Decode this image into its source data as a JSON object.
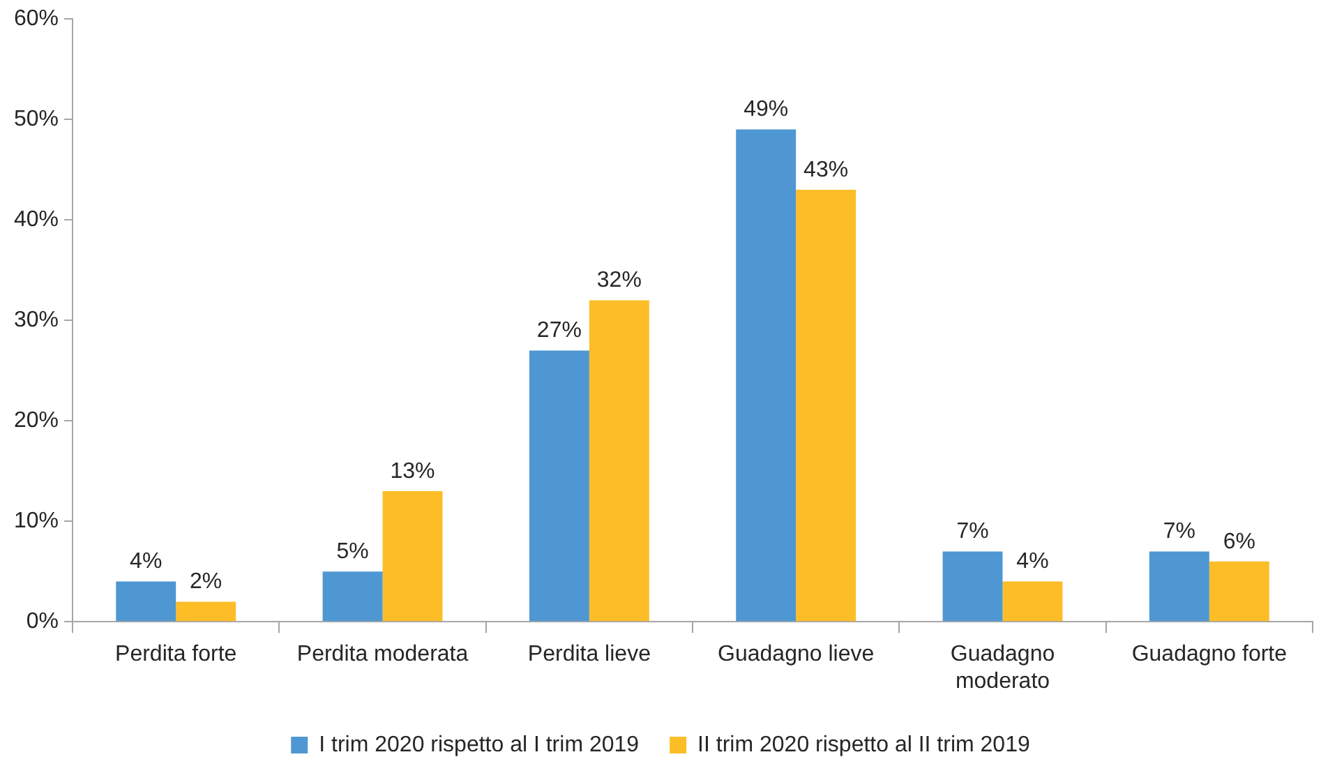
{
  "chart_data": {
    "type": "bar",
    "categories": [
      "Perdita forte",
      "Perdita moderata",
      "Perdita lieve",
      "Guadagno lieve",
      "Guadagno moderato",
      "Guadagno forte"
    ],
    "series": [
      {
        "name": "I trim 2020 rispetto al I trim 2019",
        "color": "#4e97d2",
        "values": [
          4,
          5,
          27,
          49,
          7,
          7
        ],
        "value_labels": [
          "4%",
          "5%",
          "27%",
          "49%",
          "7%",
          "7%"
        ]
      },
      {
        "name": "II trim 2020 rispetto al II trim 2019",
        "color": "#fcbd27",
        "values": [
          2,
          13,
          32,
          43,
          4,
          6
        ],
        "value_labels": [
          "2%",
          "13%",
          "32%",
          "43%",
          "4%",
          "6%"
        ]
      }
    ],
    "ylim": [
      0,
      60
    ],
    "yticks": [
      {
        "value": 0,
        "label": "0%"
      },
      {
        "value": 10,
        "label": "10%"
      },
      {
        "value": 20,
        "label": "20%"
      },
      {
        "value": 30,
        "label": "30%"
      },
      {
        "value": 40,
        "label": "40%"
      },
      {
        "value": 50,
        "label": "50%"
      },
      {
        "value": 60,
        "label": "60%"
      }
    ],
    "legend": "bottom"
  }
}
